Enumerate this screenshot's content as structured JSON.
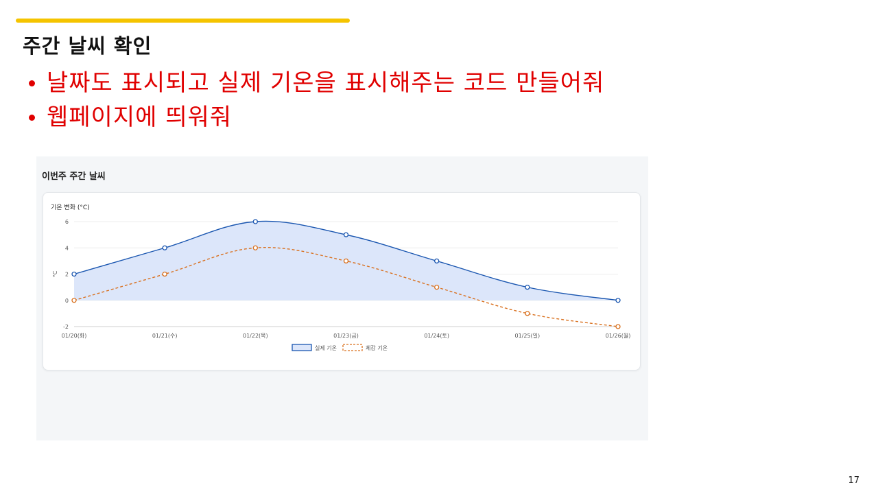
{
  "slide": {
    "title": "주간 날씨 확인",
    "bullets": [
      "날짜도 표시되고 실제 기온을 표시해주는 코드 만들어줘",
      "웹페이지에 띄워줘"
    ],
    "page_number": "17",
    "accent_color": "#f5c400",
    "bullet_color": "#e00000"
  },
  "screenshot": {
    "page_title": "이번주 주간 날씨",
    "card_title": "기온 변화 (°C)"
  },
  "chart_data": {
    "type": "line",
    "title": "기온 변화 (°C)",
    "ylabel": "°C",
    "xlabel": "",
    "categories": [
      "01/20(화)",
      "01/21(수)",
      "01/22(목)",
      "01/23(금)",
      "01/24(토)",
      "01/25(일)",
      "01/26(월)"
    ],
    "ylim": [
      -2,
      6
    ],
    "yticks": [
      -2,
      0,
      2,
      4,
      6
    ],
    "grid": true,
    "legend": "bottom",
    "series": [
      {
        "name": "실제 기온",
        "values": [
          2,
          4,
          6,
          5,
          3,
          1,
          0
        ],
        "color": "#1a56b0",
        "fill": "#dce6fa",
        "style": "solid",
        "filled": true
      },
      {
        "name": "체감 기온",
        "values": [
          0,
          2,
          4,
          3,
          1,
          -1,
          -2
        ],
        "color": "#d9701e",
        "style": "dashed",
        "filled": false
      }
    ]
  }
}
